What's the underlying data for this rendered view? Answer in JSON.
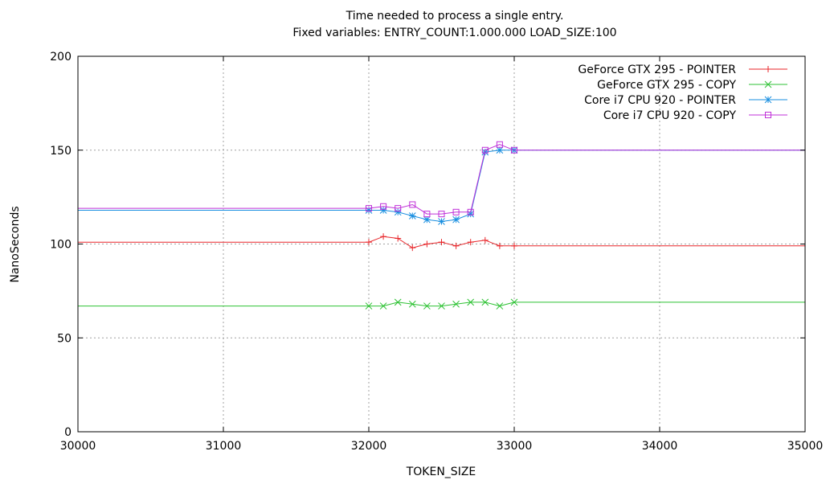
{
  "chart_data": {
    "type": "line",
    "title": "Time needed to process a single entry.",
    "subtitle": "Fixed variables: ENTRY_COUNT:1.000.000 LOAD_SIZE:100",
    "xlabel": "TOKEN_SIZE",
    "ylabel": "NanoSeconds",
    "xlim": [
      30000,
      35000
    ],
    "ylim": [
      0,
      200
    ],
    "xticks": [
      30000,
      31000,
      32000,
      33000,
      34000,
      35000
    ],
    "yticks": [
      0,
      50,
      100,
      150,
      200
    ],
    "grid": true,
    "legend_position": "top-right",
    "series": [
      {
        "name": "GeForce GTX 295 - POINTER",
        "color": "#e8262a",
        "marker": "plus",
        "points": [
          [
            30000,
            101
          ],
          [
            32000,
            101
          ],
          [
            32100,
            104
          ],
          [
            32200,
            103
          ],
          [
            32300,
            98
          ],
          [
            32400,
            100
          ],
          [
            32500,
            101
          ],
          [
            32600,
            99
          ],
          [
            32700,
            101
          ],
          [
            32800,
            102
          ],
          [
            32900,
            99
          ],
          [
            33000,
            99
          ],
          [
            35000,
            99
          ]
        ]
      },
      {
        "name": "GeForce GTX 295 - COPY",
        "color": "#2ec234",
        "marker": "cross",
        "points": [
          [
            30000,
            67
          ],
          [
            32000,
            67
          ],
          [
            32100,
            67
          ],
          [
            32200,
            69
          ],
          [
            32300,
            68
          ],
          [
            32400,
            67
          ],
          [
            32500,
            67
          ],
          [
            32600,
            68
          ],
          [
            32700,
            69
          ],
          [
            32800,
            69
          ],
          [
            32900,
            67
          ],
          [
            33000,
            69
          ],
          [
            35000,
            69
          ]
        ]
      },
      {
        "name": "Core i7 CPU 920 - POINTER",
        "color": "#1a8fe0",
        "marker": "star",
        "points": [
          [
            30000,
            118
          ],
          [
            32000,
            118
          ],
          [
            32100,
            118
          ],
          [
            32200,
            117
          ],
          [
            32300,
            115
          ],
          [
            32400,
            113
          ],
          [
            32500,
            112
          ],
          [
            32600,
            113
          ],
          [
            32700,
            116
          ],
          [
            32800,
            149
          ],
          [
            32900,
            150
          ],
          [
            33000,
            150
          ],
          [
            35000,
            150
          ]
        ]
      },
      {
        "name": "Core i7 CPU 920 - COPY",
        "color": "#c030d8",
        "marker": "square",
        "points": [
          [
            30000,
            119
          ],
          [
            32000,
            119
          ],
          [
            32100,
            120
          ],
          [
            32200,
            119
          ],
          [
            32300,
            121
          ],
          [
            32400,
            116
          ],
          [
            32500,
            116
          ],
          [
            32600,
            117
          ],
          [
            32700,
            117
          ],
          [
            32800,
            150
          ],
          [
            32900,
            153
          ],
          [
            33000,
            150
          ],
          [
            35000,
            150
          ]
        ]
      }
    ]
  }
}
